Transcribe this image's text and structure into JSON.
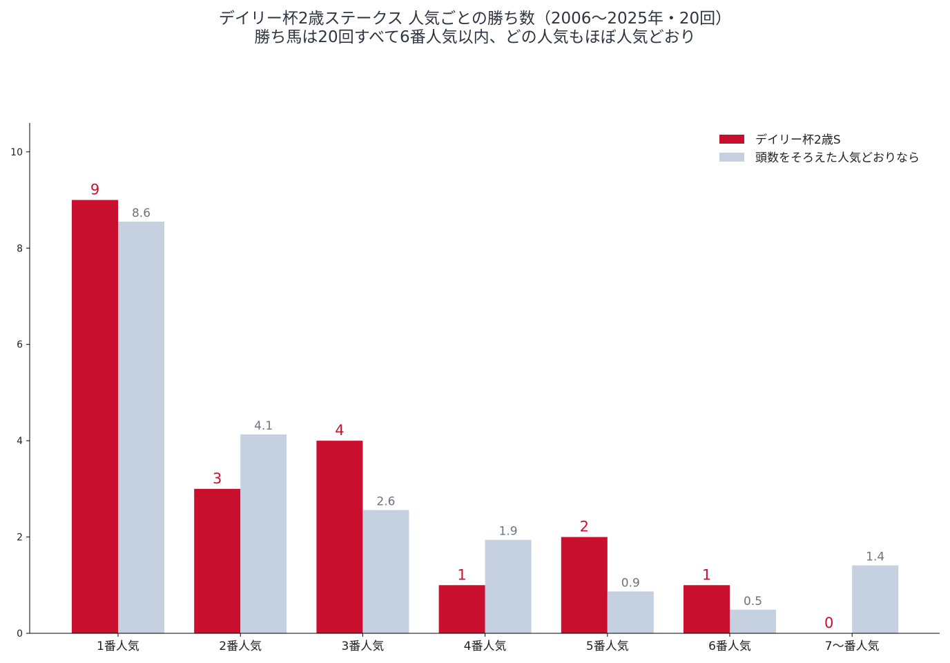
{
  "title_lines": [
    "デイリー杯2歳ステークス 人気ごとの勝ち数（2006〜2025年・20回）",
    "勝ち馬は20回すべて6番人気以内、どの人気もほぼ人気どおり"
  ],
  "chart_data": {
    "type": "bar",
    "categories": [
      "1番人気",
      "2番人気",
      "3番人気",
      "4番人気",
      "5番人気",
      "6番人気",
      "7〜番人気"
    ],
    "series": [
      {
        "name": "デイリー杯2歳S",
        "values": [
          9,
          3,
          4,
          1,
          2,
          1,
          0
        ],
        "labels": [
          "9",
          "3",
          "4",
          "1",
          "2",
          "1",
          "0"
        ],
        "color": "#c8102e"
      },
      {
        "name": "頭数をそろえた人気どおりなら",
        "values": [
          8.55,
          4.13,
          2.56,
          1.94,
          0.87,
          0.49,
          1.41
        ],
        "labels": [
          "8.6",
          "4.1",
          "2.6",
          "1.9",
          "0.9",
          "0.5",
          "1.4"
        ],
        "color": "#c5d1e1"
      }
    ],
    "yticks": [
      0,
      2,
      4,
      6,
      8,
      10
    ],
    "ylim": [
      0,
      10.6
    ],
    "legend": "top-right",
    "grid": false
  }
}
